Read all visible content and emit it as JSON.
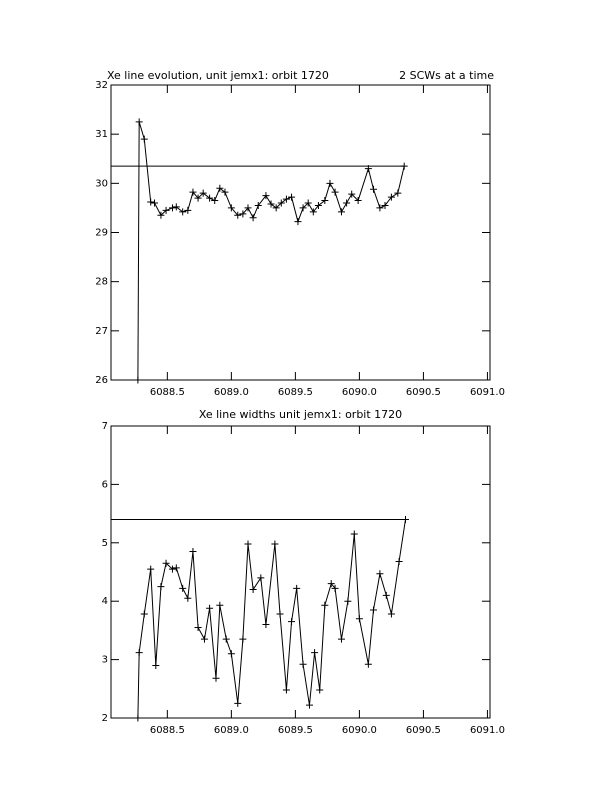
{
  "chart_data": [
    {
      "type": "line",
      "title": "Xe line evolution, unit jemx1: orbit 1720",
      "subtitle": "2 SCWs at a time",
      "x": [
        6088.27,
        6088.28,
        6088.32,
        6088.37,
        6088.4,
        6088.45,
        6088.49,
        6088.54,
        6088.57,
        6088.62,
        6088.66,
        6088.7,
        6088.74,
        6088.78,
        6088.83,
        6088.87,
        6088.91,
        6088.95,
        6089.0,
        6089.05,
        6089.09,
        6089.13,
        6089.17,
        6089.21,
        6089.27,
        6089.31,
        6089.35,
        6089.39,
        6089.43,
        6089.47,
        6089.52,
        6089.56,
        6089.6,
        6089.64,
        6089.68,
        6089.73,
        6089.77,
        6089.81,
        6089.86,
        6089.9,
        6089.94,
        6089.99,
        6090.07,
        6090.11,
        6090.16,
        6090.2,
        6090.25,
        6090.3,
        6090.35
      ],
      "values": [
        26,
        31.25,
        30.9,
        29.62,
        29.6,
        29.35,
        29.45,
        29.5,
        29.52,
        29.42,
        29.45,
        29.82,
        29.7,
        29.8,
        29.7,
        29.65,
        29.9,
        29.82,
        29.5,
        29.35,
        29.38,
        29.5,
        29.3,
        29.55,
        29.75,
        29.58,
        29.5,
        29.6,
        29.68,
        29.72,
        29.22,
        29.5,
        29.6,
        29.42,
        29.55,
        29.65,
        30.0,
        29.82,
        29.42,
        29.6,
        29.78,
        29.65,
        30.3,
        29.88,
        29.5,
        29.55,
        29.72,
        29.8,
        30.35
      ],
      "hline": 30.35,
      "color": "#000000",
      "xlim": [
        6088.06,
        6091.02
      ],
      "xticks": [
        6088.5,
        {
          "value": 6089,
          "label": "6089.0"
        },
        6089.5,
        {
          "value": 6090,
          "label": "6090.0"
        },
        6090.5,
        {
          "value": 6091,
          "label": "6091.0"
        }
      ],
      "ylim": [
        26,
        32
      ],
      "yticks": [
        26,
        27,
        28,
        29,
        30,
        31,
        32
      ]
    },
    {
      "type": "line",
      "title": "Xe line widths unit jemx1: orbit 1720",
      "x": [
        6088.27,
        6088.28,
        6088.32,
        6088.37,
        6088.41,
        6088.45,
        6088.49,
        6088.54,
        6088.57,
        6088.62,
        6088.66,
        6088.7,
        6088.74,
        6088.79,
        6088.83,
        6088.88,
        6088.91,
        6088.96,
        6089.0,
        6089.05,
        6089.09,
        6089.13,
        6089.17,
        6089.23,
        6089.27,
        6089.34,
        6089.38,
        6089.43,
        6089.47,
        6089.51,
        6089.56,
        6089.61,
        6089.65,
        6089.69,
        6089.73,
        6089.78,
        6089.81,
        6089.86,
        6089.91,
        6089.96,
        6090.0,
        6090.07,
        6090.11,
        6090.16,
        6090.21,
        6090.25,
        6090.31,
        6090.36
      ],
      "values": [
        2,
        3.12,
        3.78,
        4.55,
        2.9,
        4.25,
        4.65,
        4.55,
        4.57,
        4.22,
        4.05,
        4.85,
        3.55,
        3.35,
        3.88,
        2.68,
        3.93,
        3.35,
        3.1,
        2.25,
        3.35,
        4.98,
        4.2,
        4.4,
        3.6,
        4.98,
        3.78,
        2.48,
        3.65,
        4.22,
        2.92,
        2.22,
        3.12,
        2.48,
        3.93,
        4.3,
        4.22,
        3.35,
        4.0,
        5.15,
        3.7,
        2.92,
        3.85,
        4.47,
        4.1,
        3.78,
        4.68,
        5.4
      ],
      "hline": 5.4,
      "color": "#000000",
      "xlim": [
        6088.06,
        6091.02
      ],
      "xticks": [
        6088.5,
        {
          "value": 6089,
          "label": "6089.0"
        },
        6089.5,
        {
          "value": 6090,
          "label": "6090.0"
        },
        6090.5,
        {
          "value": 6091,
          "label": "6091.0"
        }
      ],
      "ylim": [
        2,
        7
      ],
      "yticks": [
        2,
        3,
        4,
        5,
        6,
        7
      ]
    }
  ]
}
